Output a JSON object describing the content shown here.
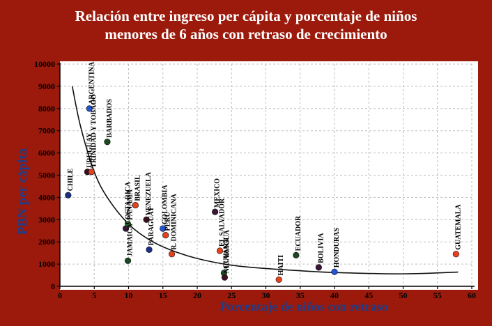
{
  "title_lines": [
    "Relación entre ingreso per cápita y porcentaje de niños",
    "menores de 6 años con retraso de crecimiento"
  ],
  "colors": {
    "background": "#9b1a0c",
    "plot_background": "#ffffff",
    "axis_label": "#1f3c88",
    "title": "#ffffff"
  },
  "chart_data": {
    "type": "scatter",
    "xlabel": "Porcentaje de niños con retraso",
    "ylabel": "PBN per cápita",
    "xlim": [
      0,
      60
    ],
    "ylim": [
      0,
      10000
    ],
    "x_ticks": [
      0,
      5,
      10,
      15,
      20,
      25,
      30,
      35,
      40,
      45,
      50,
      55,
      60
    ],
    "y_ticks": [
      0,
      1000,
      2000,
      3000,
      4000,
      5000,
      6000,
      7000,
      8000,
      9000,
      10000
    ],
    "grid": true,
    "points": [
      {
        "name": "CHILE",
        "x": 1.2,
        "y": 4100,
        "color": "#1b2f86"
      },
      {
        "name": "URUGUAY",
        "x": 4.0,
        "y": 5150,
        "color": "#3a1020"
      },
      {
        "name": "ARGENTINA",
        "x": 4.3,
        "y": 8000,
        "color": "#2255d6"
      },
      {
        "name": "TRINIDAD Y TOBAGO",
        "x": 4.6,
        "y": 5150,
        "color": "#e8401c"
      },
      {
        "name": "BARBADOS",
        "x": 6.9,
        "y": 6500,
        "color": "#1d4a1c"
      },
      {
        "name": "COSTA RICA",
        "x": 9.6,
        "y": 2600,
        "color": "#3a1636"
      },
      {
        "name": "PANAMA",
        "x": 9.9,
        "y": 2800,
        "color": "#2a6a2a"
      },
      {
        "name": "JAMAICA",
        "x": 9.9,
        "y": 1150,
        "color": "#1b4a22"
      },
      {
        "name": "BRASIL",
        "x": 11.0,
        "y": 3650,
        "color": "#e8401c"
      },
      {
        "name": "VENEZUELA",
        "x": 12.6,
        "y": 3000,
        "color": "#3a1020"
      },
      {
        "name": "PARAGUAY",
        "x": 13.0,
        "y": 1650,
        "color": "#1b2f86"
      },
      {
        "name": "COLOMBIA",
        "x": 15.0,
        "y": 2600,
        "color": "#2255d6"
      },
      {
        "name": "PERU",
        "x": 15.4,
        "y": 2300,
        "color": "#e8401c"
      },
      {
        "name": "R. DOMINICANA",
        "x": 16.3,
        "y": 1450,
        "color": "#e8401c"
      },
      {
        "name": "MEXICO",
        "x": 22.6,
        "y": 3350,
        "color": "#3a1636"
      },
      {
        "name": "EL SALVADOR",
        "x": 23.3,
        "y": 1600,
        "color": "#e8401c"
      },
      {
        "name": "GUYANA",
        "x": 23.9,
        "y": 600,
        "color": "#1b4a22"
      },
      {
        "name": "NICARAGUA",
        "x": 24.0,
        "y": 400,
        "color": "#3a1020"
      },
      {
        "name": "HAITI",
        "x": 31.9,
        "y": 300,
        "color": "#e8401c"
      },
      {
        "name": "ECUADOR",
        "x": 34.4,
        "y": 1400,
        "color": "#1b4a22"
      },
      {
        "name": "BOLIVIA",
        "x": 37.7,
        "y": 850,
        "color": "#3a1636"
      },
      {
        "name": "HONDURAS",
        "x": 40.0,
        "y": 650,
        "color": "#2255d6"
      },
      {
        "name": "GUATEMALA",
        "x": 57.7,
        "y": 1450,
        "color": "#e8401c"
      }
    ],
    "trend_line": [
      [
        1.8,
        9000
      ],
      [
        3,
        7200
      ],
      [
        5,
        5150
      ],
      [
        7,
        3950
      ],
      [
        10,
        2800
      ],
      [
        13,
        2100
      ],
      [
        16,
        1650
      ],
      [
        20,
        1250
      ],
      [
        25,
        950
      ],
      [
        30,
        800
      ],
      [
        35,
        700
      ],
      [
        40,
        620
      ],
      [
        50,
        560
      ],
      [
        58,
        640
      ]
    ]
  }
}
